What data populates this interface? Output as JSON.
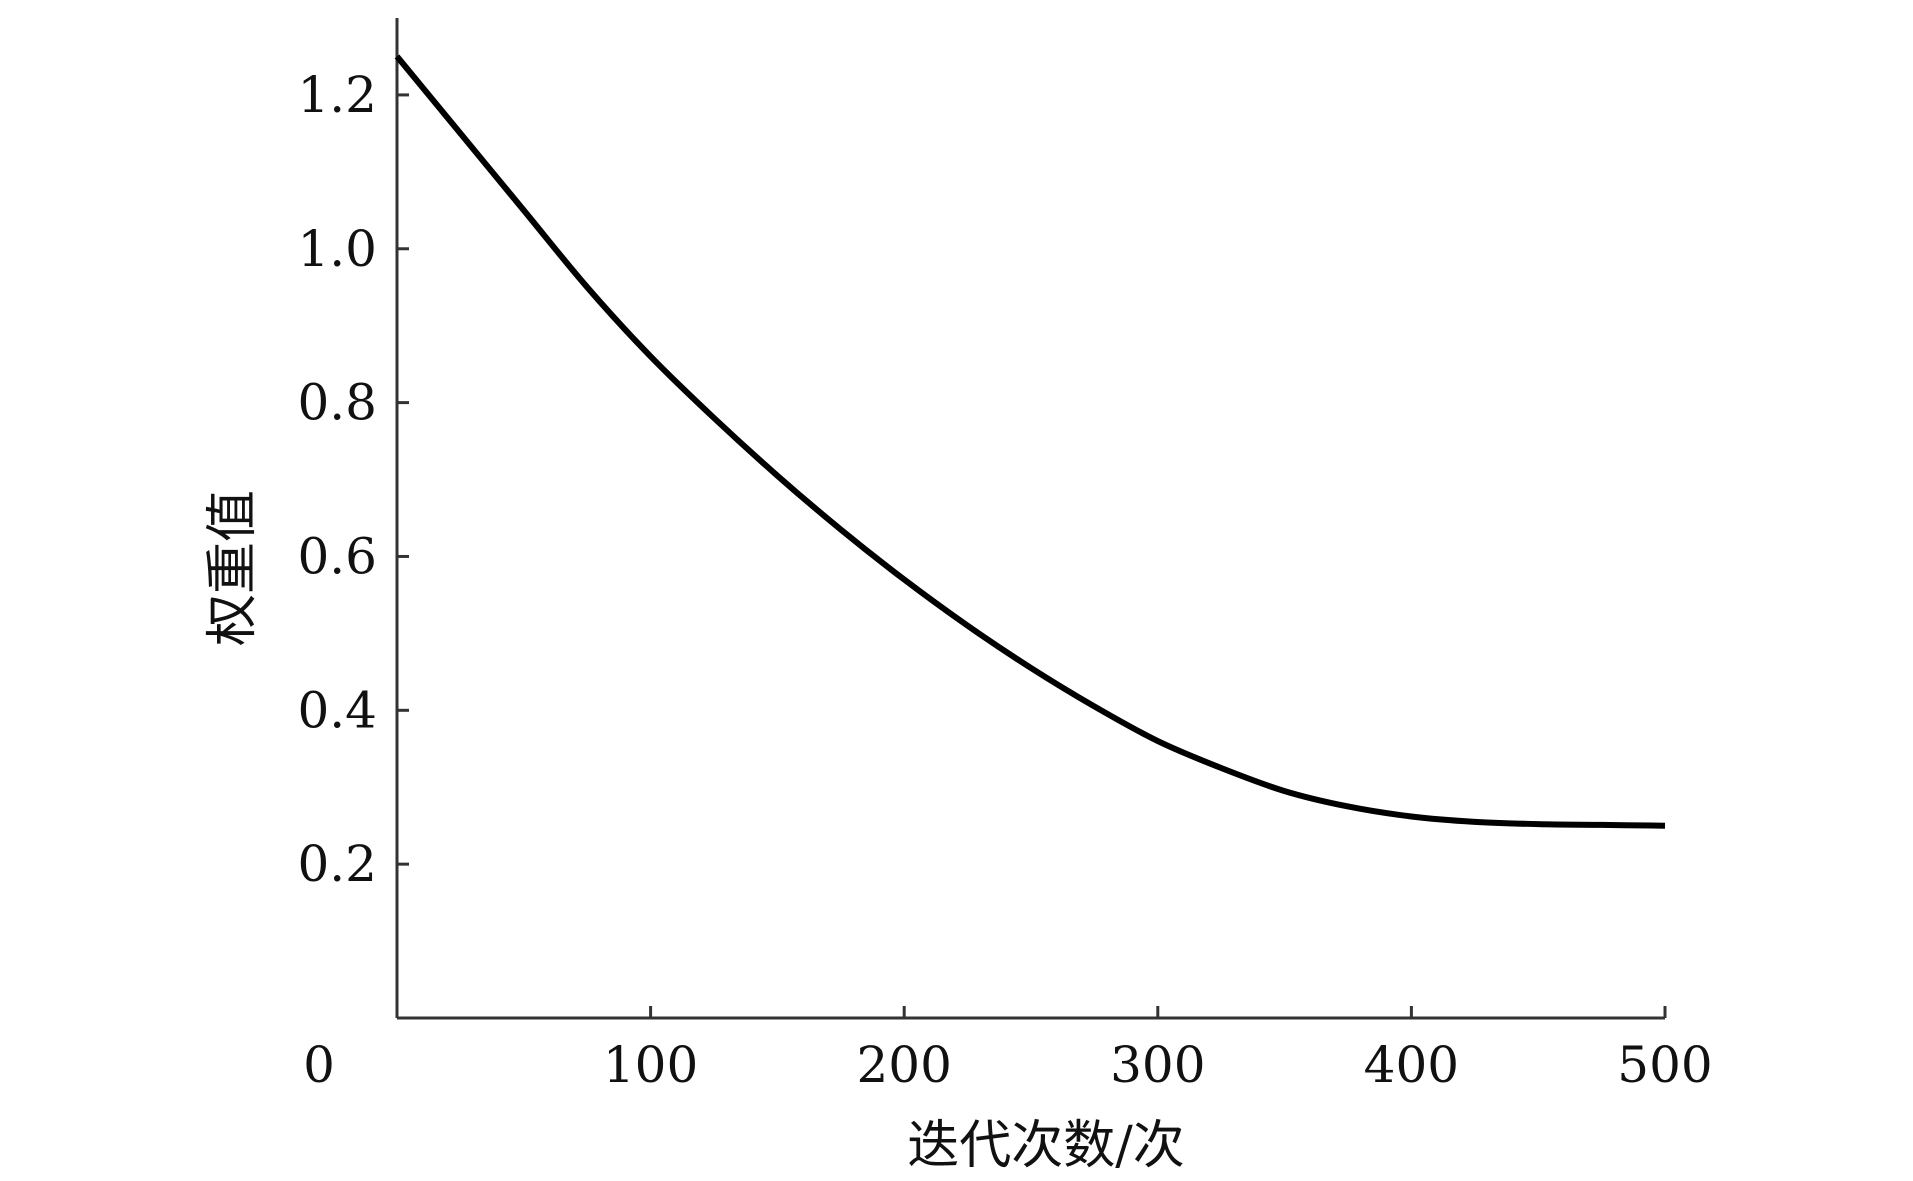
{
  "chart_data": {
    "type": "line",
    "title": "",
    "xlabel": "迭代次数/次",
    "ylabel": "权重值",
    "xlim": [
      0,
      500
    ],
    "ylim": [
      0.0,
      1.3
    ],
    "grid": false,
    "legend": "none",
    "x_ticks": [
      0,
      100,
      200,
      300,
      400,
      500
    ],
    "x_tick_labels": [
      "0",
      "100",
      "200",
      "300",
      "400",
      "500"
    ],
    "y_ticks": [
      0.2,
      0.4,
      0.6,
      0.8,
      1.0,
      1.2
    ],
    "y_tick_labels": [
      "0.2",
      "0.4",
      "0.6",
      "0.8",
      "1.0",
      "1.2"
    ],
    "series": [
      {
        "color": "#000000",
        "x": [
          0,
          25,
          50,
          75,
          100,
          125,
          150,
          175,
          200,
          225,
          250,
          275,
          300,
          325,
          350,
          375,
          400,
          425,
          450,
          475,
          500
        ],
        "y": [
          1.25,
          1.15,
          1.05,
          0.95,
          0.86,
          0.78,
          0.705,
          0.635,
          0.57,
          0.51,
          0.455,
          0.405,
          0.36,
          0.325,
          0.295,
          0.275,
          0.262,
          0.255,
          0.252,
          0.251,
          0.25
        ]
      }
    ]
  }
}
